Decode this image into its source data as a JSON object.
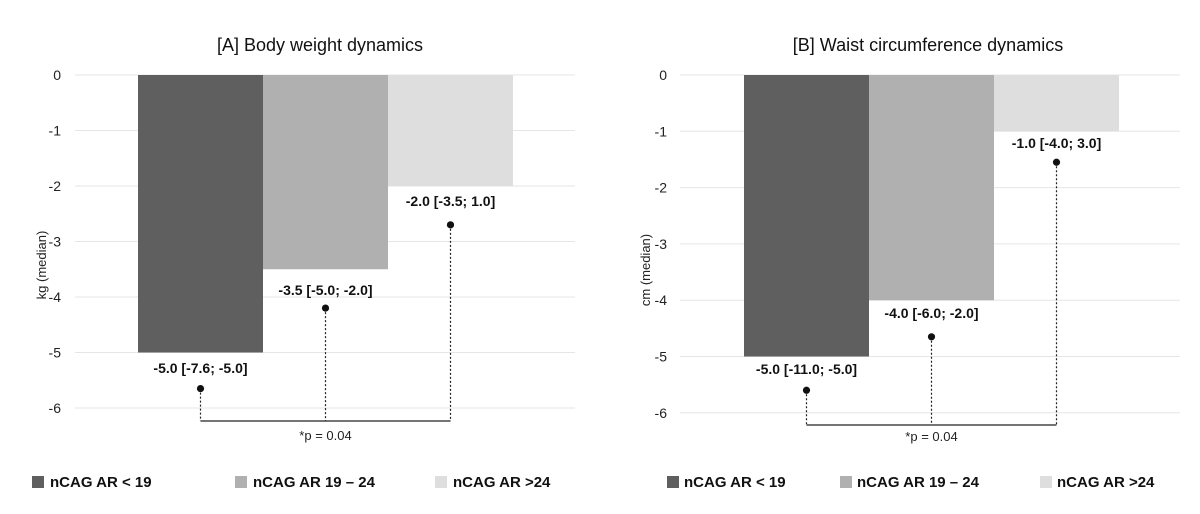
{
  "colors": {
    "series": [
      "#5f5f5f",
      "#b0b0b0",
      "#dedede"
    ]
  },
  "chart_data": [
    {
      "type": "bar",
      "title": "[A] Body weight dynamics",
      "ylabel": "kg (median)",
      "ylim": [
        -6,
        0
      ],
      "yticks": [
        0,
        -1,
        -2,
        -3,
        -4,
        -5,
        -6
      ],
      "legend_position": "bottom",
      "grid": true,
      "series": [
        {
          "name": "nCAG AR < 19",
          "value": -5.0,
          "label": "-5.0 [-7.6; -5.0]",
          "lower_whisker_end": -5.65
        },
        {
          "name": "nCAG AR 19 – 24",
          "value": -3.5,
          "label": "-3.5 [-5.0; -2.0]",
          "lower_whisker_end": -4.2
        },
        {
          "name": "nCAG AR >24",
          "value": -2.0,
          "label": "-2.0 [-3.5; 1.0]",
          "lower_whisker_end": -2.7
        }
      ],
      "annotation": "*p = 0.04"
    },
    {
      "type": "bar",
      "title": "[B] Waist circumference dynamics",
      "ylabel": "cm (median)",
      "ylim": [
        -6,
        0
      ],
      "yticks": [
        0,
        -1,
        -2,
        -3,
        -4,
        -5,
        -6
      ],
      "legend_position": "bottom",
      "grid": true,
      "series": [
        {
          "name": "nCAG AR < 19",
          "value": -5.0,
          "label": "-5.0 [-11.0; -5.0]",
          "lower_whisker_end": -5.6
        },
        {
          "name": "nCAG AR 19 – 24",
          "value": -4.0,
          "label": "-4.0 [-6.0; -2.0]",
          "lower_whisker_end": -4.65
        },
        {
          "name": "nCAG AR >24",
          "value": -1.0,
          "label": "-1.0 [-4.0; 3.0]",
          "lower_whisker_end": -1.55
        }
      ],
      "annotation": "*p = 0.04"
    }
  ]
}
